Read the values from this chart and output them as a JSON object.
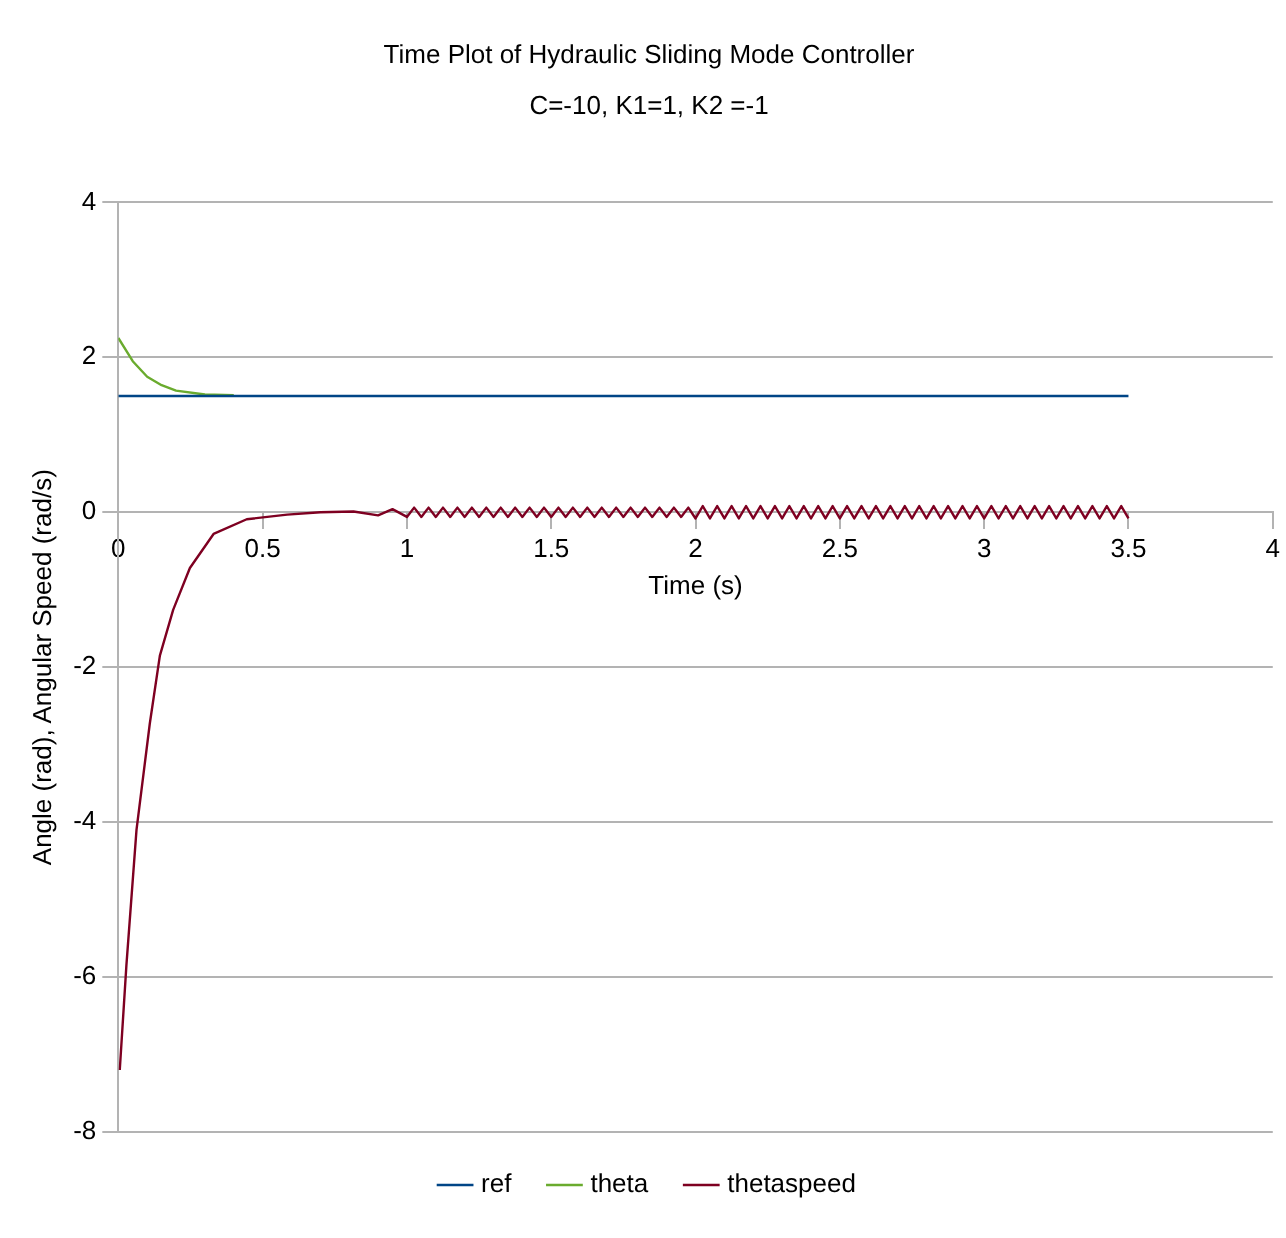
{
  "chart_data": {
    "type": "line",
    "title": "Time Plot of Hydraulic Sliding Mode Controller",
    "subtitle": "C=-10, K1=1, K2 =-1",
    "xlabel": "Time (s)",
    "ylabel": "Angle (rad), Angular Speed (rad/s)",
    "xlim": [
      0,
      4
    ],
    "xticks": [
      0,
      0.5,
      1,
      1.5,
      2,
      2.5,
      3,
      3.5,
      4
    ],
    "ylim": [
      -8,
      4
    ],
    "yticks": [
      -8,
      -6,
      -4,
      -2,
      0,
      2,
      4
    ],
    "grid": "y",
    "legend": "bottom",
    "marker": "none",
    "line_style": "solid",
    "series": [
      {
        "name": "ref",
        "color": "#004586",
        "x": [
          0,
          3.5
        ],
        "values": [
          1.5,
          1.5
        ]
      },
      {
        "name": "theta",
        "color": "#6aab2e",
        "x": [
          0,
          0.05,
          0.1,
          0.15,
          0.2,
          0.3,
          0.4
        ],
        "values": [
          2.25,
          1.95,
          1.75,
          1.64,
          1.57,
          1.52,
          1.51
        ]
      },
      {
        "name": "thetaspeed",
        "color": "#7e0021",
        "x": [
          0.005,
          0.028,
          0.063,
          0.109,
          0.144,
          0.19,
          0.248,
          0.33,
          0.445,
          0.585,
          0.7,
          0.815,
          0.9,
          0.95,
          1,
          1.025,
          1.05,
          1.075,
          1.1,
          1.125,
          1.15,
          1.175,
          1.2,
          1.225,
          1.25,
          1.275,
          1.3,
          1.325,
          1.35,
          1.375,
          1.4,
          1.425,
          1.45,
          1.475,
          1.5,
          1.525,
          1.55,
          1.575,
          1.6,
          1.625,
          1.65,
          1.675,
          1.7,
          1.725,
          1.75,
          1.775,
          1.8,
          1.825,
          1.85,
          1.875,
          1.9,
          1.925,
          1.95,
          1.975,
          2,
          2.025,
          2.05,
          2.075,
          2.1,
          2.125,
          2.15,
          2.175,
          2.2,
          2.225,
          2.25,
          2.275,
          2.3,
          2.325,
          2.35,
          2.375,
          2.4,
          2.425,
          2.45,
          2.475,
          2.5,
          2.525,
          2.55,
          2.575,
          2.6,
          2.625,
          2.65,
          2.675,
          2.7,
          2.725,
          2.75,
          2.775,
          2.8,
          2.825,
          2.85,
          2.875,
          2.9,
          2.925,
          2.95,
          2.975,
          3,
          3.025,
          3.05,
          3.075,
          3.1,
          3.125,
          3.15,
          3.175,
          3.2,
          3.225,
          3.25,
          3.275,
          3.3,
          3.325,
          3.35,
          3.375,
          3.4,
          3.425,
          3.45,
          3.475,
          3.5
        ],
        "values": [
          -7.2,
          -5.85,
          -4.1,
          -2.73,
          -1.85,
          -1.26,
          -0.72,
          -0.28,
          -0.09,
          -0.03,
          0,
          0.01,
          -0.04,
          0.04,
          -0.06,
          0.06,
          -0.06,
          0.06,
          -0.06,
          0.06,
          -0.06,
          0.06,
          -0.06,
          0.06,
          -0.06,
          0.06,
          -0.06,
          0.06,
          -0.06,
          0.06,
          -0.06,
          0.06,
          -0.06,
          0.06,
          -0.06,
          0.06,
          -0.06,
          0.06,
          -0.06,
          0.06,
          -0.06,
          0.06,
          -0.06,
          0.06,
          -0.06,
          0.06,
          -0.06,
          0.06,
          -0.06,
          0.06,
          -0.06,
          0.06,
          -0.06,
          0.06,
          -0.08,
          0.08,
          -0.08,
          0.08,
          -0.08,
          0.08,
          -0.08,
          0.08,
          -0.08,
          0.08,
          -0.08,
          0.08,
          -0.08,
          0.08,
          -0.08,
          0.08,
          -0.08,
          0.08,
          -0.08,
          0.08,
          -0.08,
          0.08,
          -0.08,
          0.08,
          -0.08,
          0.08,
          -0.08,
          0.08,
          -0.08,
          0.08,
          -0.08,
          0.08,
          -0.08,
          0.08,
          -0.08,
          0.08,
          -0.08,
          0.08,
          -0.08,
          0.08,
          -0.08,
          0.08,
          -0.08,
          0.08,
          -0.08,
          0.08,
          -0.08,
          0.08,
          -0.08,
          0.08,
          -0.08,
          0.08,
          -0.08,
          0.08,
          -0.08,
          0.08,
          -0.08,
          0.08,
          -0.08,
          0.08,
          -0.08
        ]
      }
    ]
  }
}
